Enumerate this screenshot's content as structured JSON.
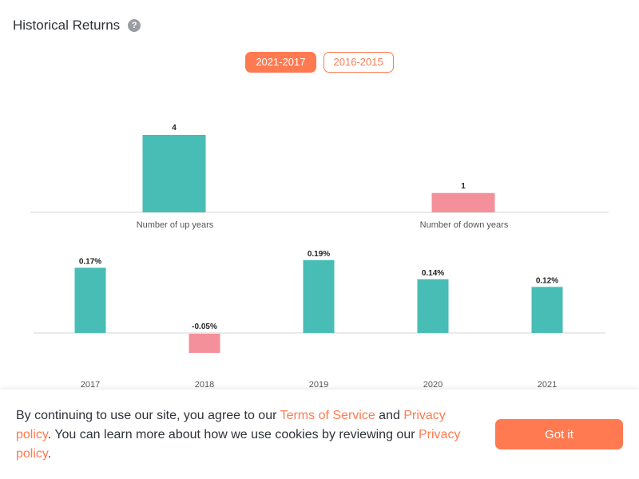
{
  "header": {
    "title": "Historical Returns",
    "help_icon": "question-circle-icon"
  },
  "tabs": [
    {
      "label": "2021-2017",
      "active": true
    },
    {
      "label": "2016-2015",
      "active": false
    }
  ],
  "colors": {
    "accent": "#ff7a50",
    "positive": "#47bdb5",
    "negative": "#f4909a",
    "baseline": "#e3e3e3"
  },
  "chart_data": [
    {
      "type": "bar",
      "categories": [
        "Number of up years",
        "Number of down years"
      ],
      "values": [
        4,
        1
      ],
      "value_labels": [
        "4",
        "1"
      ]
    },
    {
      "type": "bar",
      "categories": [
        "2017",
        "2018",
        "2019",
        "2020",
        "2021"
      ],
      "values": [
        0.17,
        -0.05,
        0.19,
        0.14,
        0.12
      ],
      "value_labels": [
        "0.17%",
        "-0.05%",
        "0.19%",
        "0.14%",
        "0.12%"
      ],
      "unit": "%"
    }
  ],
  "cookie": {
    "text_1": "By continuing to use our site, you agree to our ",
    "terms_link": "Terms of Service",
    "text_2": " and ",
    "privacy_link_1": "Privacy policy",
    "text_3": ". You can learn more about how we use cookies by reviewing our ",
    "privacy_link_2": "Privacy policy",
    "text_4": ".",
    "button_label": "Got it"
  }
}
